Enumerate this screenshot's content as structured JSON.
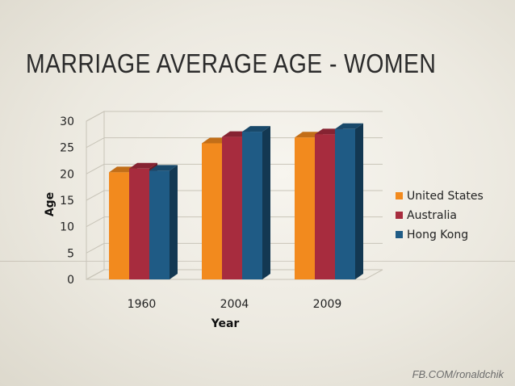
{
  "slide": {
    "title": "MARRIAGE AVERAGE AGE - WOMEN",
    "credit": "FB.COM/ronaldchik"
  },
  "chart_data": {
    "type": "bar",
    "title": "",
    "xlabel": "Year",
    "ylabel": "Age",
    "categories": [
      "1960",
      "2004",
      "2009"
    ],
    "series": [
      {
        "name": "United States",
        "values": [
          20.3,
          25.8,
          26.9
        ],
        "color": "#f28a1e"
      },
      {
        "name": "Australia",
        "values": [
          21.0,
          27.0,
          27.5
        ],
        "color": "#a72c3e"
      },
      {
        "name": "Hong Kong",
        "values": [
          20.6,
          28.0,
          28.5
        ],
        "color": "#1f5b85"
      }
    ],
    "ylim": [
      0,
      30
    ],
    "yticks": [
      0,
      5,
      10,
      15,
      20,
      25,
      30
    ],
    "grid": true,
    "legend_position": "right",
    "style": "3d-clustered-column"
  }
}
